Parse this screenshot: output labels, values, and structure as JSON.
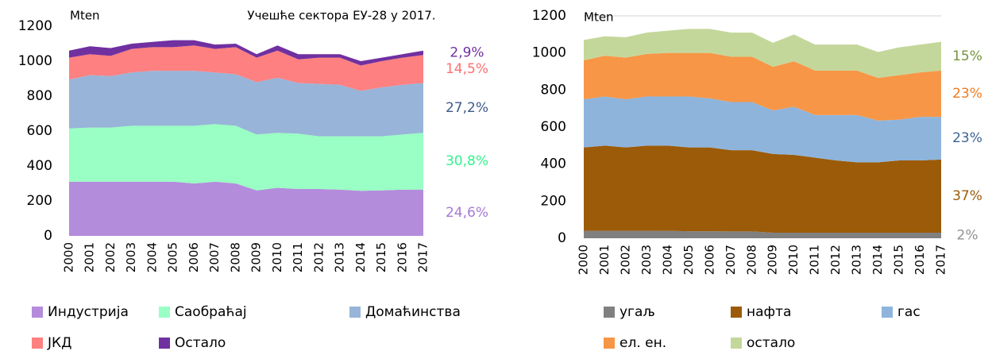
{
  "chart_data": [
    {
      "type": "stacked_area",
      "title": "Учешће сектора ЕУ-28 у 2017.",
      "y_label": "Mten",
      "categories": [
        "2000",
        "2001",
        "2002",
        "2003",
        "2004",
        "2005",
        "2006",
        "2007",
        "2008",
        "2009",
        "2010",
        "2011",
        "2012",
        "2013",
        "2014",
        "2015",
        "2016",
        "2017"
      ],
      "ylim": [
        0,
        1200
      ],
      "yticks": [
        0,
        200,
        400,
        600,
        800,
        1000,
        1200
      ],
      "series": [
        {
          "name": "Индустрија",
          "color": "#b48cdc",
          "share": "24,6%",
          "label_color": "#a77ad6",
          "values": [
            310,
            310,
            310,
            310,
            310,
            310,
            300,
            310,
            300,
            260,
            275,
            268,
            268,
            265,
            258,
            260,
            265,
            265
          ]
        },
        {
          "name": "Саобраћај",
          "color": "#99ffc4",
          "share": "30,8%",
          "label_color": "#33f28c",
          "values": [
            305,
            310,
            310,
            320,
            320,
            320,
            330,
            330,
            330,
            320,
            315,
            317,
            302,
            305,
            312,
            310,
            315,
            325
          ]
        },
        {
          "name": "Домаћинства",
          "color": "#98b4d8",
          "share": "27,2%",
          "label_color": "#3c5a8a",
          "values": [
            280,
            300,
            295,
            305,
            315,
            315,
            315,
            295,
            295,
            300,
            315,
            290,
            300,
            295,
            260,
            280,
            285,
            285
          ]
        },
        {
          "name": "ЈКД",
          "color": "#ff8080",
          "share": "14,5%",
          "label_color": "#ff7070",
          "values": [
            125,
            120,
            115,
            135,
            135,
            135,
            145,
            135,
            155,
            140,
            155,
            135,
            150,
            155,
            145,
            150,
            155,
            160
          ]
        },
        {
          "name": "Остало",
          "color": "#7030a0",
          "share": "2,9%",
          "label_color": "#7030a0",
          "values": [
            40,
            45,
            45,
            30,
            30,
            40,
            30,
            25,
            20,
            20,
            30,
            30,
            20,
            20,
            25,
            20,
            20,
            25
          ]
        }
      ]
    },
    {
      "type": "stacked_area",
      "y_label": "Mten",
      "categories": [
        "2000",
        "2001",
        "2002",
        "2003",
        "2004",
        "2005",
        "2006",
        "2007",
        "2008",
        "2009",
        "2010",
        "2011",
        "2012",
        "2013",
        "2014",
        "2015",
        "2016",
        "2017"
      ],
      "ylim": [
        0,
        1200
      ],
      "yticks": [
        0,
        200,
        400,
        600,
        800,
        1000,
        1200
      ],
      "series": [
        {
          "name": "угаљ",
          "color": "#808080",
          "share": "2%",
          "label_color": "#909090",
          "values": [
            40,
            40,
            40,
            40,
            40,
            38,
            38,
            37,
            37,
            30,
            30,
            30,
            30,
            30,
            30,
            30,
            30,
            30
          ]
        },
        {
          "name": "нафта",
          "color": "#9c5b08",
          "share": "37%",
          "label_color": "#9c5b08",
          "values": [
            450,
            460,
            450,
            460,
            460,
            452,
            452,
            438,
            438,
            425,
            420,
            405,
            390,
            380,
            380,
            390,
            390,
            395
          ]
        },
        {
          "name": "гас",
          "color": "#8eb4dc",
          "share": "23%",
          "label_color": "#3c6496",
          "values": [
            260,
            265,
            260,
            265,
            265,
            275,
            265,
            260,
            260,
            235,
            260,
            230,
            245,
            255,
            225,
            220,
            235,
            230
          ]
        },
        {
          "name": "ел. ен.",
          "color": "#f79646",
          "share": "23%",
          "label_color": "#f07a20",
          "values": [
            210,
            220,
            225,
            230,
            235,
            235,
            245,
            245,
            245,
            235,
            245,
            240,
            240,
            240,
            230,
            240,
            240,
            250
          ]
        },
        {
          "name": "остало",
          "color": "#c4d79b",
          "share": "15%",
          "label_color": "#77933c",
          "values": [
            110,
            105,
            110,
            115,
            120,
            130,
            130,
            130,
            130,
            130,
            145,
            140,
            140,
            140,
            140,
            150,
            150,
            155
          ]
        }
      ]
    }
  ]
}
